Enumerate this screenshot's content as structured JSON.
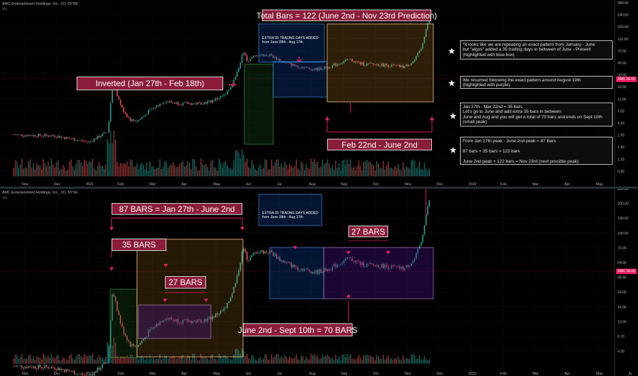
{
  "symbol_header": "AMC Entertainment Holdings, Inc., 1D, NYSE",
  "vol_label": "Vol",
  "price_tag": "36.60",
  "price_tag_prefix": "AMC",
  "colors": {
    "up": "#26a69a",
    "down": "#ef5350",
    "accent": "#e91e63",
    "label_bg": "#8b1c3a",
    "green_box": "#1b5e20",
    "blue_box": "#0d47a1",
    "purple_box": "#4a148c",
    "yellow_box": "#f9a825"
  },
  "top": {
    "title": "Total Bars = 122 (June 2nd - Nov 23rd Prediction)",
    "inverted": "Inverted (Jan 27th - Feb 18th)",
    "feb_june": "Feb 22nd - June 2nd",
    "extra_box": "EXTRA 35 TRADNG DAYS ADDED\nfrom June 28th - Aug 17th",
    "notes": [
      "*It looks like we are repeating an exact pattern from January - June\nbut \"algos\" added a 35 trading days in between of June - Present\n(highlighted with blue box)",
      "We resumed following the exact pattern around August 19th\n(highlighted with purple)",
      "Jan 27th - Mar 22nd = 35 bars\nLet's go to June and add extra 35 bars in between\nJune and Aug and you will get a total of 70 bars and ends on Sept 10th\n(small peak)",
      "From Jan 27th peak - June 2nd peak = 87 Bars\n\n87 bars + 35 bars = 122 bars\n\nJune 2nd peak + 122 bars = Nov 23rd (next possible peak)"
    ],
    "y_ticks": [
      "380.00",
      "240.00",
      "160.00",
      "110.00",
      "70.00",
      "45.00",
      "28.00",
      "18.00",
      "11.00",
      "7.00",
      "4.50",
      "2.90",
      "1.90",
      "1.20",
      "0.80"
    ],
    "x_ticks": [
      "Nov",
      "Dec",
      "2021",
      "Feb",
      "Mar",
      "Apr",
      "May",
      "Jun",
      "Jul",
      "Aug",
      "Sep",
      "Oct",
      "Nov",
      "Dec",
      "2022",
      "Feb",
      "Mar",
      "Apr",
      "May"
    ]
  },
  "bottom": {
    "bars87": "87 BARS = Jan 27th - June 2nd",
    "bars35": "35 BARS",
    "bars27a": "27 BARS",
    "bars27b": "27 BARS",
    "june_sept": "June 2nd - Sept 10th = 70 BARS",
    "extra_box": "EXTRA 35 TRADNG DAYS ADDED\nfrom June 28th - Aug 17th",
    "y_ticks": [
      "280.00",
      "200.00",
      "140.00",
      "100.00",
      "70.00",
      "54.00",
      "38.00",
      "24.00",
      "16.00",
      "10.00",
      "6.70",
      "4.30"
    ],
    "x_ticks": [
      "Nov",
      "Dec",
      "2021",
      "Feb",
      "Mar",
      "Apr",
      "May",
      "Jun",
      "Jul",
      "Aug",
      "Sep",
      "Oct",
      "Nov",
      "Dec",
      "2022",
      "Feb",
      "Mar",
      "Apr",
      "May",
      "Ju"
    ]
  },
  "chart_data": {
    "type": "candlestick",
    "title": "AMC Entertainment Holdings, Inc., 1D, NYSE",
    "y_scale": "log",
    "series": [
      {
        "name": "Price (approx. daily close)",
        "x": [
          "2020-11",
          "2020-12",
          "2021-01-04",
          "2021-01-27",
          "2021-02-04",
          "2021-02-18",
          "2021-03-08",
          "2021-03-22",
          "2021-04-15",
          "2021-05-03",
          "2021-05-24",
          "2021-06-02",
          "2021-06-15",
          "2021-06-28",
          "2021-07-15",
          "2021-08-17",
          "2021-09-10",
          "2021-10-15",
          "2021-11-03",
          "2021-11-23"
        ],
        "values": [
          3.0,
          2.9,
          2.3,
          19.9,
          7.8,
          5.0,
          10.3,
          13.0,
          9.5,
          10.0,
          26.0,
          62.5,
          55.0,
          56.0,
          40.0,
          33.0,
          47.0,
          39.0,
          40.0,
          220.0
        ]
      }
    ],
    "annotations": [
      "Total Bars = 122 (June 2nd - Nov 23rd Prediction)",
      "87 BARS = Jan 27th - June 2nd",
      "35 BARS",
      "27 BARS",
      "June 2nd - Sept 10th = 70 BARS"
    ]
  }
}
